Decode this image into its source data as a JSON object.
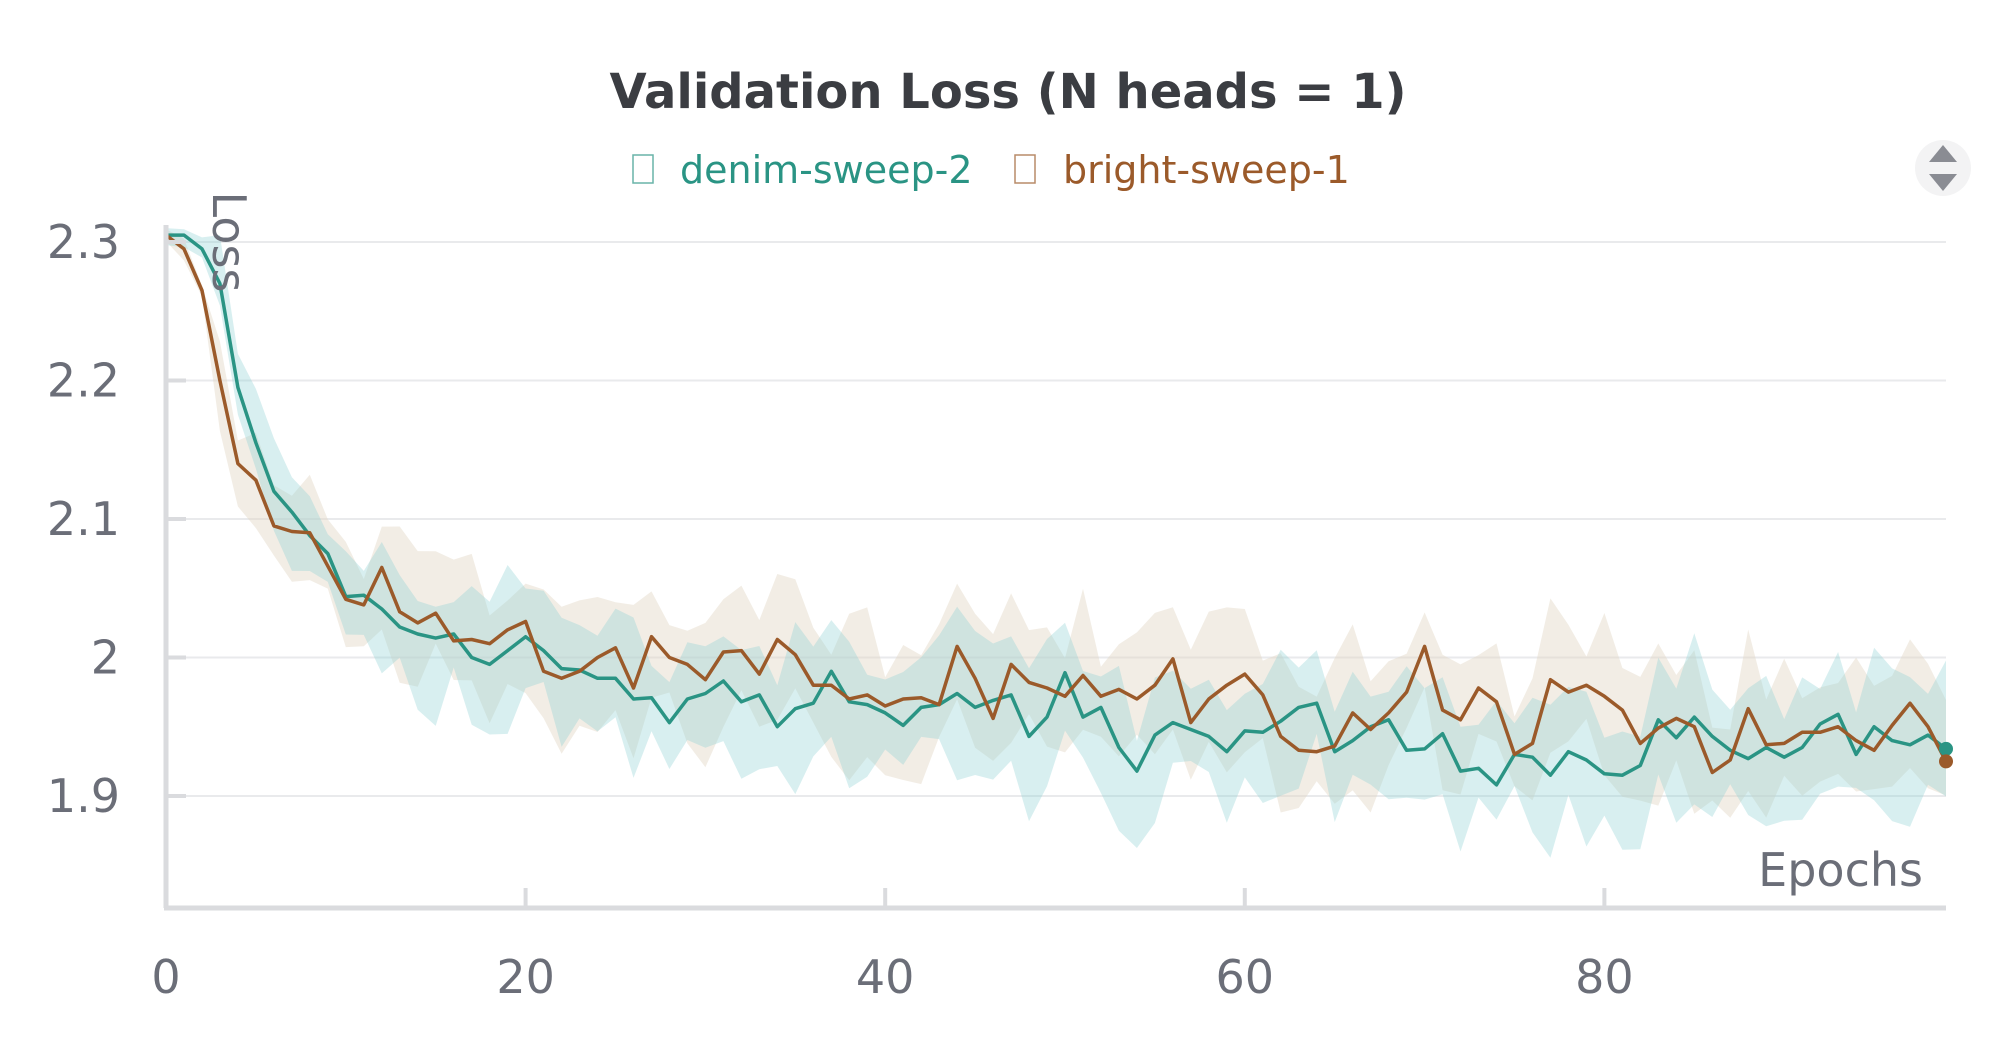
{
  "chart_data": {
    "type": "line",
    "title": "Validation Loss (N heads = 1)",
    "xlabel": "Epochs",
    "ylabel": "Loss",
    "xlim": [
      0,
      99
    ],
    "ylim": [
      1.83,
      2.31
    ],
    "xticks": [
      0,
      20,
      40,
      60,
      80
    ],
    "xtick_labels": [
      "0",
      "20",
      "40",
      "60",
      "80"
    ],
    "yticks": [
      1.9,
      2.0,
      2.1,
      2.2,
      2.3
    ],
    "ytick_labels": [
      "1.9",
      "2",
      "2.1",
      "2.2",
      "2.3"
    ],
    "grid": true,
    "legend_position": "top-center",
    "colors": {
      "denim-sweep-2": "#2a9484",
      "bright-sweep-1": "#9b5a2a"
    },
    "series": [
      {
        "name": "denim-sweep-2",
        "color": "#2a9484",
        "band_color": "#8fd0d3",
        "x": [
          0,
          1,
          2,
          3,
          4,
          5,
          6,
          7,
          8,
          9,
          10,
          11,
          12,
          13,
          14,
          15,
          16,
          17,
          18,
          19,
          20,
          21,
          22,
          23,
          24,
          25,
          26,
          27,
          28,
          29,
          30,
          31,
          32,
          33,
          34,
          35,
          36,
          37,
          38,
          39,
          40,
          41,
          42,
          43,
          44,
          45,
          46,
          47,
          48,
          49,
          50,
          51,
          52,
          53,
          54,
          55,
          56,
          57,
          58,
          59,
          60,
          61,
          62,
          63,
          64,
          65,
          66,
          67,
          68,
          69,
          70,
          71,
          72,
          73,
          74,
          75,
          76,
          77,
          78,
          79,
          80,
          81,
          82,
          83,
          84,
          85,
          86,
          87,
          88,
          89,
          90,
          91,
          92,
          93,
          94,
          95,
          96,
          97,
          98,
          99
        ],
        "values": [
          2.305,
          2.305,
          2.295,
          2.27,
          2.195,
          2.155,
          2.12,
          2.105,
          2.088,
          2.075,
          2.044,
          2.045,
          2.035,
          2.022,
          2.017,
          2.014,
          2.017,
          2.0,
          1.995,
          2.005,
          2.015,
          2.005,
          1.992,
          1.991,
          1.985,
          1.985,
          1.97,
          1.971,
          1.953,
          1.97,
          1.974,
          1.983,
          1.968,
          1.973,
          1.95,
          1.963,
          1.967,
          1.99,
          1.968,
          1.966,
          1.96,
          1.951,
          1.964,
          1.966,
          1.974,
          1.964,
          1.969,
          1.973,
          1.943,
          1.957,
          1.989,
          1.957,
          1.964,
          1.935,
          1.918,
          1.944,
          1.953,
          1.948,
          1.943,
          1.932,
          1.947,
          1.946,
          1.954,
          1.964,
          1.967,
          1.932,
          1.94,
          1.95,
          1.955,
          1.933,
          1.934,
          1.945,
          1.918,
          1.92,
          1.908,
          1.93,
          1.928,
          1.915,
          1.932,
          1.926,
          1.916,
          1.915,
          1.922,
          1.955,
          1.942,
          1.957,
          1.943,
          1.933,
          1.927,
          1.935,
          1.928,
          1.935,
          1.952,
          1.959,
          1.93,
          1.95,
          1.94,
          1.937,
          1.944,
          1.934
        ]
      },
      {
        "name": "bright-sweep-1",
        "color": "#9b5a2a",
        "band_color": "#e3d7c6",
        "x": [
          0,
          1,
          2,
          3,
          4,
          5,
          6,
          7,
          8,
          9,
          10,
          11,
          12,
          13,
          14,
          15,
          16,
          17,
          18,
          19,
          20,
          21,
          22,
          23,
          24,
          25,
          26,
          27,
          28,
          29,
          30,
          31,
          32,
          33,
          34,
          35,
          36,
          37,
          38,
          39,
          40,
          41,
          42,
          43,
          44,
          45,
          46,
          47,
          48,
          49,
          50,
          51,
          52,
          53,
          54,
          55,
          56,
          57,
          58,
          59,
          60,
          61,
          62,
          63,
          64,
          65,
          66,
          67,
          68,
          69,
          70,
          71,
          72,
          73,
          74,
          75,
          76,
          77,
          78,
          79,
          80,
          81,
          82,
          83,
          84,
          85,
          86,
          87,
          88,
          89,
          90,
          91,
          92,
          93,
          94,
          95,
          96,
          97,
          98,
          99
        ],
        "values": [
          2.305,
          2.295,
          2.265,
          2.2,
          2.14,
          2.128,
          2.095,
          2.091,
          2.09,
          2.066,
          2.042,
          2.038,
          2.065,
          2.033,
          2.025,
          2.032,
          2.012,
          2.013,
          2.01,
          2.02,
          2.026,
          1.99,
          1.985,
          1.99,
          2.0,
          2.007,
          1.978,
          2.015,
          2.0,
          1.995,
          1.984,
          2.004,
          2.005,
          1.988,
          2.013,
          2.002,
          1.98,
          1.98,
          1.97,
          1.973,
          1.965,
          1.97,
          1.971,
          1.966,
          2.008,
          1.985,
          1.956,
          1.995,
          1.982,
          1.978,
          1.972,
          1.987,
          1.972,
          1.977,
          1.97,
          1.98,
          1.999,
          1.953,
          1.97,
          1.98,
          1.988,
          1.973,
          1.943,
          1.933,
          1.932,
          1.936,
          1.96,
          1.948,
          1.96,
          1.975,
          2.008,
          1.962,
          1.955,
          1.978,
          1.968,
          1.93,
          1.938,
          1.984,
          1.975,
          1.98,
          1.972,
          1.962,
          1.938,
          1.949,
          1.956,
          1.95,
          1.917,
          1.926,
          1.963,
          1.937,
          1.938,
          1.946,
          1.946,
          1.95,
          1.94,
          1.933,
          1.951,
          1.967,
          1.95,
          1.925
        ]
      }
    ]
  },
  "controls": {
    "scroll_arrows_icon": "up-down-arrows-icon"
  }
}
